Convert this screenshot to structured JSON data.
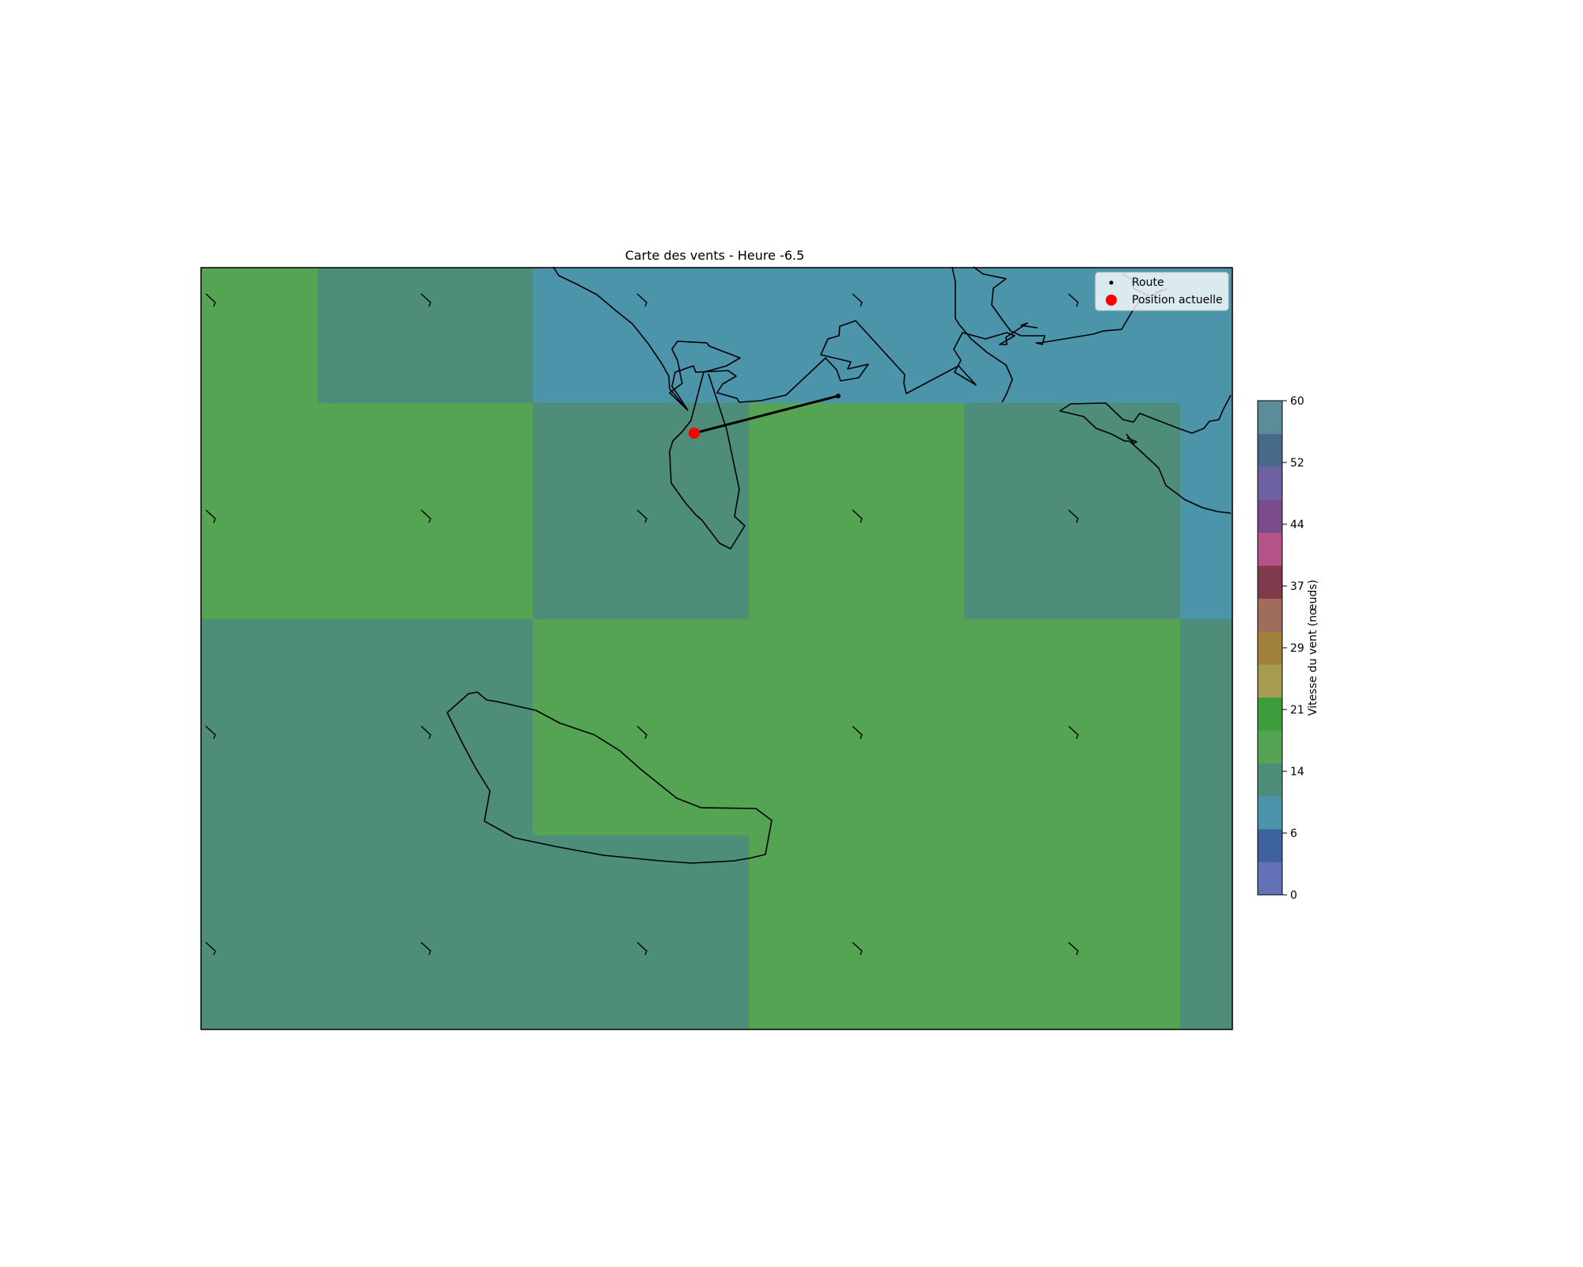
{
  "title": "Carte des vents - Heure -6.5",
  "legend": {
    "route_label": "Route",
    "position_label": "Position actuelle"
  },
  "colorbar": {
    "label": "Vitesse du vent (nœuds)",
    "min": 0,
    "max": 60,
    "tick_labels": [
      "0",
      "6",
      "14",
      "21",
      "29",
      "37",
      "44",
      "52",
      "60"
    ],
    "bins": [
      {
        "from": 0,
        "to": 4,
        "color": "#6471b7"
      },
      {
        "from": 4,
        "to": 8,
        "color": "#3e629c"
      },
      {
        "from": 8,
        "to": 12,
        "color": "#4b94aa"
      },
      {
        "from": 12,
        "to": 16,
        "color": "#4f8d7b"
      },
      {
        "from": 16,
        "to": 20,
        "color": "#54a454"
      },
      {
        "from": 20,
        "to": 24,
        "color": "#3c9d3c"
      },
      {
        "from": 24,
        "to": 28,
        "color": "#a59c52"
      },
      {
        "from": 28,
        "to": 32,
        "color": "#a1803a"
      },
      {
        "from": 32,
        "to": 36,
        "color": "#a06c5c"
      },
      {
        "from": 36,
        "to": 40,
        "color": "#803a4c"
      },
      {
        "from": 40,
        "to": 44,
        "color": "#b45488"
      },
      {
        "from": 44,
        "to": 48,
        "color": "#7a4c8c"
      },
      {
        "from": 48,
        "to": 52,
        "color": "#6d61a2"
      },
      {
        "from": 52,
        "to": 56,
        "color": "#476a8a"
      },
      {
        "from": 56,
        "to": 60,
        "color": "#5b8c98"
      }
    ]
  },
  "wind_grid": {
    "row_speeds_knots": [
      [
        17,
        13,
        10,
        10,
        10,
        10
      ],
      [
        17,
        17,
        13,
        17,
        13,
        10
      ],
      [
        13,
        13,
        17,
        17,
        17,
        13
      ],
      [
        13,
        13,
        13,
        17,
        17,
        13
      ]
    ]
  },
  "route_color": "#000000",
  "position_color": "#ff0000"
}
